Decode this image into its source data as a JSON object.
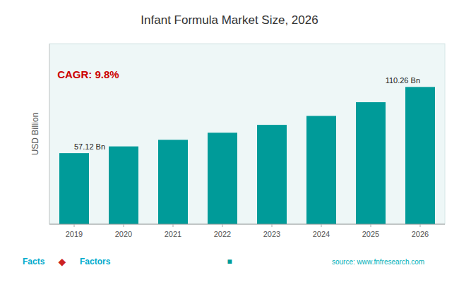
{
  "chart_data": {
    "type": "bar",
    "title": "Infant Formula Market Size, 2026",
    "categories": [
      "2019",
      "2020",
      "2021",
      "2022",
      "2023",
      "2024",
      "2025",
      "2026"
    ],
    "values": [
      57.12,
      62.5,
      67.8,
      73.5,
      79.8,
      87.0,
      98.0,
      110.26
    ],
    "value_labels": [
      "57.12 Bn",
      null,
      null,
      null,
      null,
      null,
      null,
      "110.26 Bn"
    ],
    "data_labels": true,
    "color": "#009B99",
    "ylabel": "USD Billion",
    "ylim": [
      0,
      145
    ],
    "tick_labels": "x",
    "grid": false,
    "annotations": [
      {
        "text": "CAGR: 9.8%",
        "color": "#cc0000"
      },
      {
        "text": "Facts",
        "color": "#00aacc"
      },
      {
        "text": "◆",
        "color": "#cc2222"
      },
      {
        "text": "Factors",
        "color": "#00aacc"
      },
      {
        "text": "■",
        "color": "#009B99"
      },
      {
        "text": "source: www.fnfresearch.com",
        "color": "#00b0b9"
      }
    ]
  }
}
